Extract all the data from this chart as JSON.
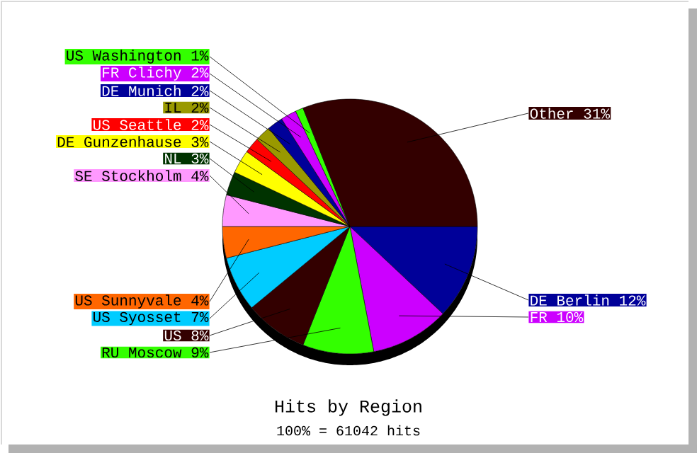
{
  "chart_data": {
    "type": "pie",
    "title": "Hits by Region",
    "subtitle": "100% = 61042 hits",
    "categories": [
      "DE Berlin",
      "FR",
      "RU Moscow",
      "US",
      "US Syosset",
      "US Sunnyvale",
      "SE Stockholm",
      "NL",
      "DE Gunzenhause",
      "US Seattle",
      "IL",
      "DE Munich",
      "FR Clichy",
      "US Washington",
      "Other"
    ],
    "values": [
      12,
      10,
      9,
      8,
      7,
      4,
      4,
      3,
      3,
      2,
      2,
      2,
      2,
      1,
      31
    ],
    "value_labels": [
      "12%",
      "10%",
      "9%",
      "8%",
      "7%",
      "4%",
      "4%",
      "3%",
      "3%",
      "2%",
      "2%",
      "2%",
      "2%",
      "1%",
      "31%"
    ],
    "colors": [
      "#000099",
      "#cc00ff",
      "#33ff00",
      "#330000",
      "#00ccff",
      "#ff6600",
      "#ff99ff",
      "#003300",
      "#ffff00",
      "#ff0000",
      "#999900",
      "#000099",
      "#cc00ff",
      "#33ff00",
      "#330000"
    ]
  }
}
